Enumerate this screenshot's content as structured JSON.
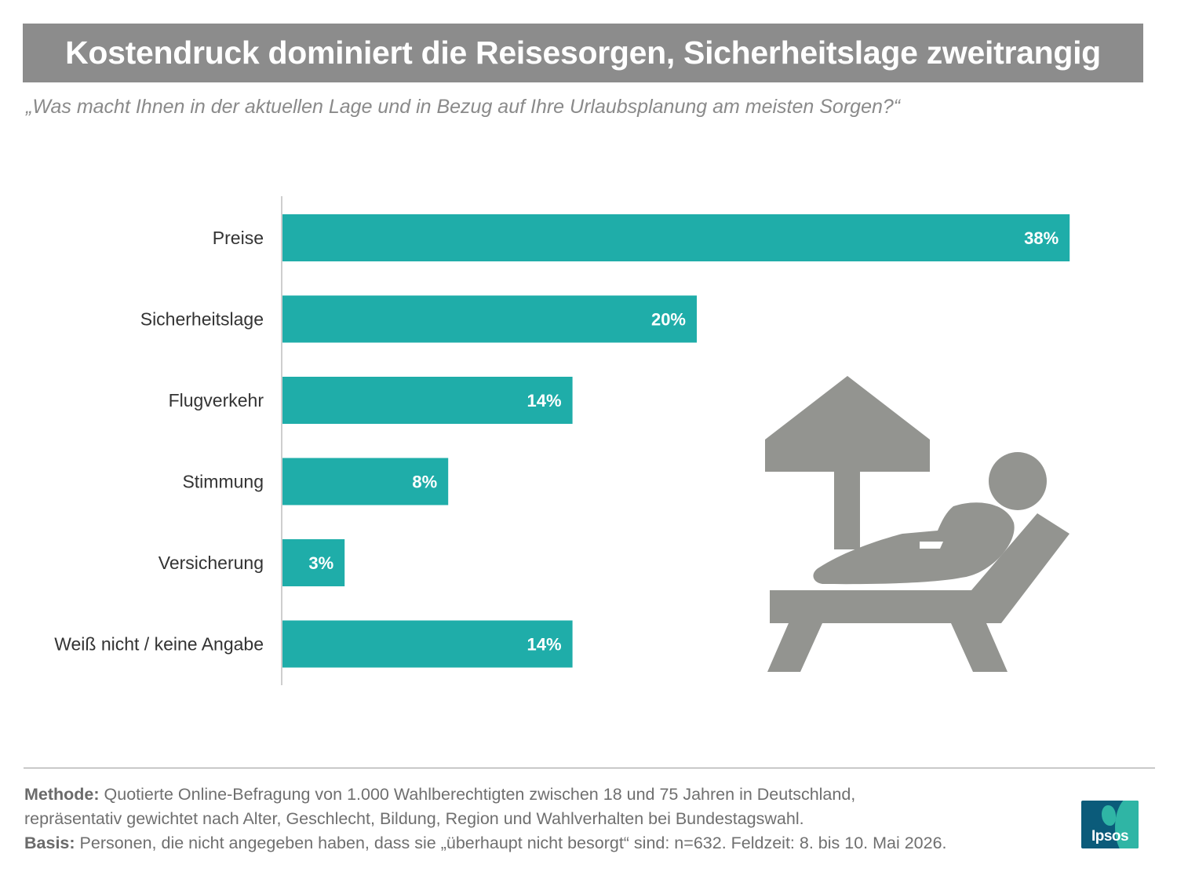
{
  "header": {
    "title": "Kostendruck dominiert die Reisesorgen, Sicherheitslage zweitrangig",
    "subtitle": "„Was macht Ihnen in der aktuellen Lage und in Bezug auf Ihre Urlaubsplanung am meisten Sorgen?“"
  },
  "chart_data": {
    "type": "bar",
    "orientation": "horizontal",
    "categories": [
      "Preise",
      "Sicherheitslage",
      "Flugverkehr",
      "Stimmung",
      "Versicherung",
      "Weiß nicht / keine Angabe"
    ],
    "values": [
      38,
      20,
      14,
      8,
      3,
      14
    ],
    "value_labels": [
      "38%",
      "20%",
      "14%",
      "8%",
      "3%",
      "14%"
    ],
    "unit": "%",
    "bar_color": "#1fada9",
    "value_label_color": "#ffffff",
    "grid": false,
    "legend": "none"
  },
  "illustration": {
    "icon": "sunbed-umbrella-icon",
    "color": "#939490"
  },
  "footer": {
    "method_label": "Methode:",
    "method_text_1": " Quotierte Online-Befragung von 1.000 Wahlberechtigten zwischen 18 und 75 Jahren in Deutschland,",
    "method_text_2": "repräsentativ gewichtet nach Alter, Geschlecht, Bildung, Region und Wahlverhalten bei Bundestagswahl.",
    "basis_label": "Basis:",
    "basis_text": " Personen, die nicht angegeben haben, dass sie „überhaupt nicht besorgt“ sind: n=632. Feldzeit: 8. bis 10. Mai 2026."
  },
  "logo": {
    "text": "Ipsos",
    "colors": {
      "background": "#0b5b7a",
      "accent": "#2fb5a5"
    }
  }
}
